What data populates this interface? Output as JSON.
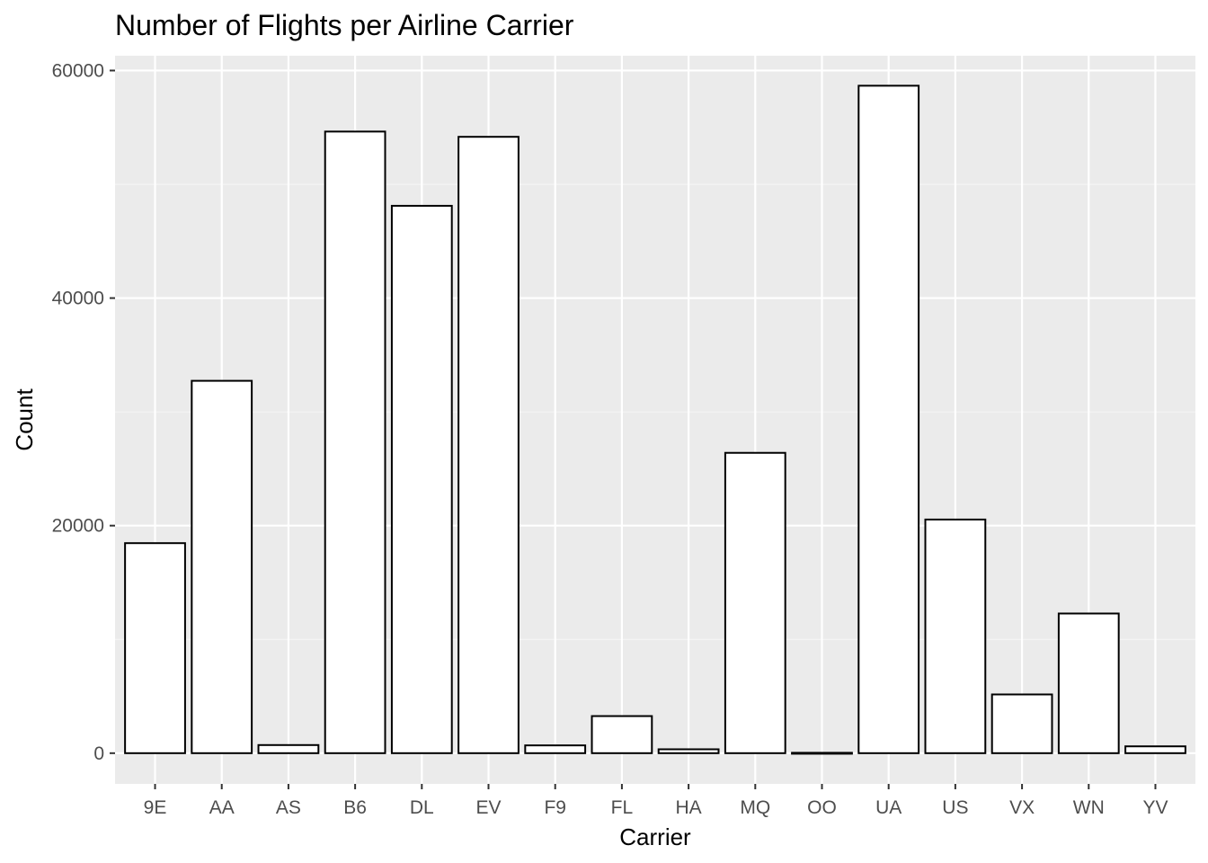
{
  "chart_data": {
    "type": "bar",
    "title": "Number of Flights per Airline Carrier",
    "xlabel": "Carrier",
    "ylabel": "Count",
    "categories": [
      "9E",
      "AA",
      "AS",
      "B6",
      "DL",
      "EV",
      "F9",
      "FL",
      "HA",
      "MQ",
      "OO",
      "UA",
      "US",
      "VX",
      "WN",
      "YV"
    ],
    "values": [
      18460,
      32729,
      714,
      54635,
      48110,
      54173,
      685,
      3260,
      342,
      26397,
      32,
      58665,
      20536,
      5162,
      12275,
      601
    ],
    "ylim": [
      -2700,
      61300
    ],
    "yticks": [
      0,
      20000,
      40000,
      60000
    ],
    "grid": true,
    "legend": "none",
    "colors": {
      "panel_background": "#ebebeb",
      "grid_major": "#ffffff",
      "grid_minor": "#f5f5f5",
      "bar_fill": "#ffffff",
      "bar_outline": "#000000",
      "tick_text": "#4d4d4d",
      "tick_mark": "#333333"
    }
  }
}
